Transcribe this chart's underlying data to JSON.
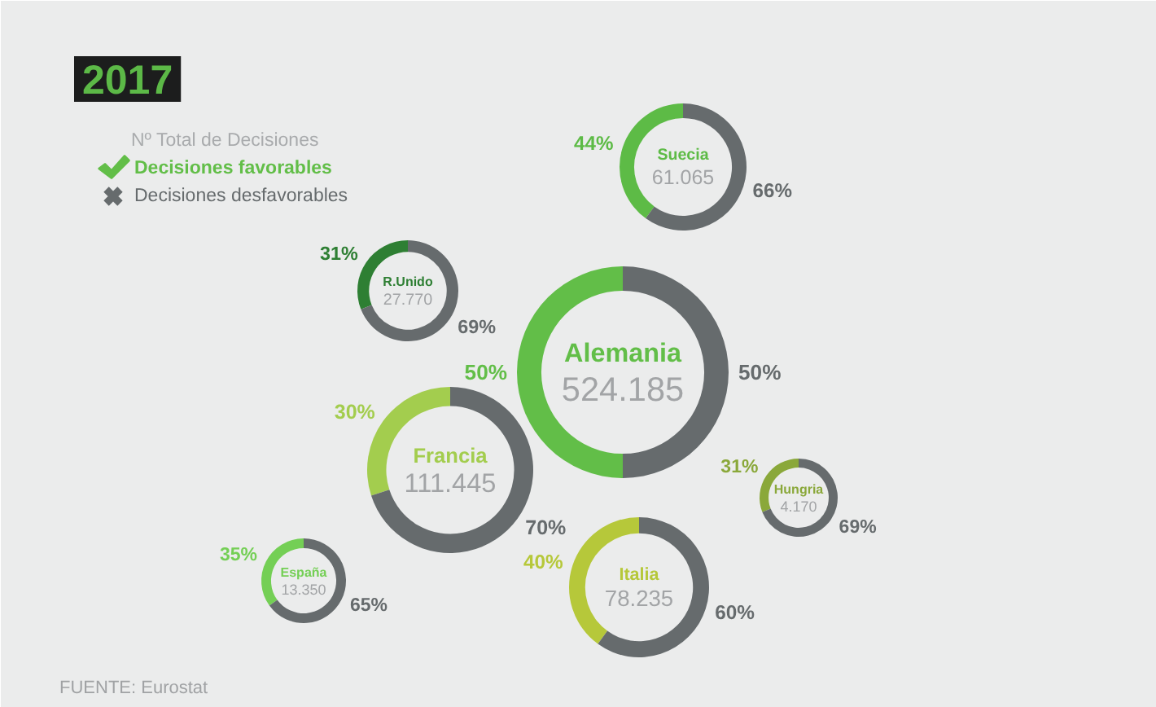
{
  "chart_data": [
    {
      "type": "other",
      "title": "2017",
      "annotations": [
        "FUENTE: Eurostat"
      ]
    },
    {
      "type": "donut",
      "title": "Suecia",
      "subtitle": "61.065",
      "values": [
        44,
        66
      ],
      "colors": [
        "#5dbb46",
        "#666b6d"
      ],
      "value_labels": [
        "44%",
        "66%"
      ]
    },
    {
      "type": "donut",
      "title": "R.Unido",
      "subtitle": "27.770",
      "values": [
        31,
        69
      ],
      "colors": [
        "#2e7f33",
        "#666b6d"
      ],
      "value_labels": [
        "31%",
        "69%"
      ]
    },
    {
      "type": "donut",
      "title": "Alemania",
      "subtitle": "524.185",
      "categories": [
        "Decisiones favorables",
        "Decisiones desfavorables"
      ],
      "values": [
        50,
        50
      ],
      "colors": [
        "#62be48",
        "#666b6d"
      ],
      "value_labels": [
        "50%",
        "50%"
      ],
      "legend": "top left",
      "legend_title": "Nº Total de Decisiones"
    },
    {
      "type": "donut",
      "title": "Francia",
      "subtitle": "111.445",
      "values": [
        30,
        70
      ],
      "colors": [
        "#a3cd4e",
        "#666b6d"
      ],
      "value_labels": [
        "30%",
        "70%"
      ]
    },
    {
      "type": "donut",
      "title": "Hungria",
      "subtitle": "4.170",
      "values": [
        31,
        69
      ],
      "colors": [
        "#8aa83a",
        "#666b6d"
      ],
      "value_labels": [
        "31%",
        "69%"
      ]
    },
    {
      "type": "donut",
      "title": "España",
      "subtitle": "13.350",
      "values": [
        35,
        65
      ],
      "colors": [
        "#74cf55",
        "#666b6d"
      ],
      "value_labels": [
        "35%",
        "65%"
      ]
    },
    {
      "type": "donut",
      "title": "Italia",
      "subtitle": "78.235",
      "values": [
        40,
        60
      ],
      "colors": [
        "#b6c83a",
        "#666b6d"
      ],
      "value_labels": [
        "40%",
        "60%"
      ]
    }
  ]
}
